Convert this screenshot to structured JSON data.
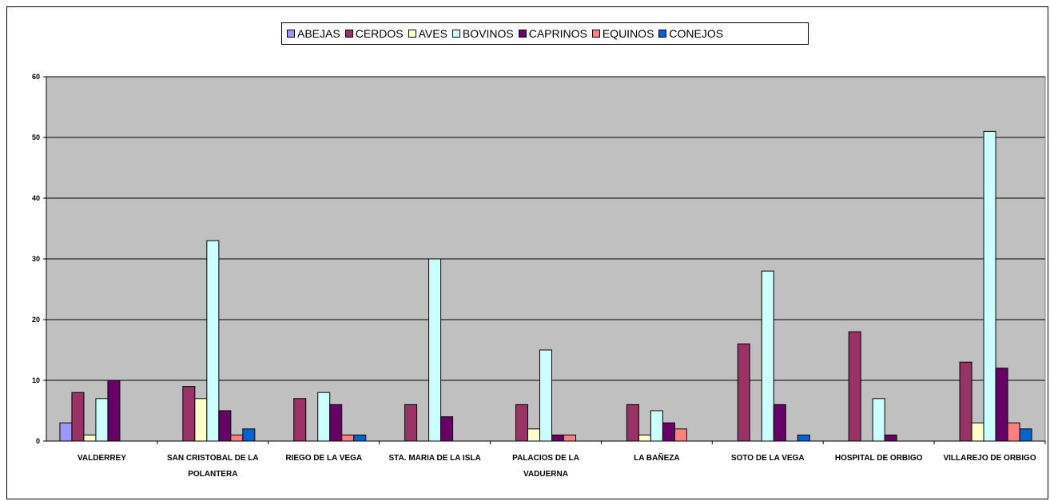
{
  "chart_data": {
    "type": "bar",
    "categories": [
      [
        "VALDERREY"
      ],
      [
        "SAN CRISTOBAL DE LA",
        "POLANTERA"
      ],
      [
        "RIEGO DE LA VEGA"
      ],
      [
        "STA. MARIA DE LA ISLA"
      ],
      [
        "PALACIOS DE LA",
        "VADUERNA"
      ],
      [
        "LA BAÑEZA"
      ],
      [
        "SOTO DE LA VEGA"
      ],
      [
        "HOSPITAL DE ORBIGO"
      ],
      [
        "VILLAREJO DE ORBIGO"
      ]
    ],
    "series": [
      {
        "name": "ABEJAS",
        "color": "#9999FF",
        "values": [
          3,
          0,
          0,
          0,
          0,
          0,
          0,
          0,
          0
        ]
      },
      {
        "name": "CERDOS",
        "color": "#993366",
        "values": [
          8,
          9,
          7,
          6,
          6,
          6,
          16,
          18,
          13
        ]
      },
      {
        "name": "AVES",
        "color": "#FFFFCC",
        "values": [
          1,
          7,
          0,
          0,
          2,
          1,
          0,
          0,
          3
        ]
      },
      {
        "name": "BOVINOS",
        "color": "#CCFFFF",
        "values": [
          7,
          33,
          8,
          30,
          15,
          5,
          28,
          7,
          51
        ]
      },
      {
        "name": "CAPRINOS",
        "color": "#660066",
        "values": [
          10,
          5,
          6,
          4,
          1,
          3,
          6,
          1,
          12
        ]
      },
      {
        "name": "EQUINOS",
        "color": "#FF8080",
        "values": [
          0,
          1,
          1,
          0,
          1,
          2,
          0,
          0,
          3
        ]
      },
      {
        "name": "CONEJOS",
        "color": "#0066CC",
        "values": [
          0,
          2,
          1,
          0,
          0,
          0,
          1,
          0,
          2
        ]
      }
    ],
    "yticks": [
      0,
      10,
      20,
      30,
      40,
      50,
      60
    ],
    "ylim": [
      0,
      60
    ],
    "grid": true,
    "plot_background": "#C0C0C0",
    "legend_position": "top-center"
  }
}
